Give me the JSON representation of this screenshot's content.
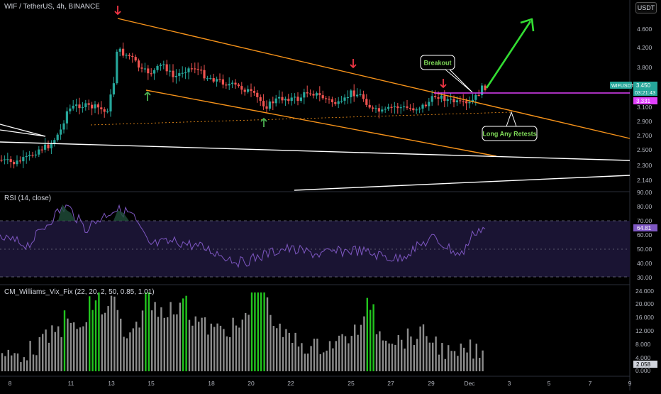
{
  "header": {
    "symbol": "WIF / TetherUS, 4h, BINANCE",
    "currency": "USDT"
  },
  "price_axis": {
    "ticks": [
      "4.600",
      "4.200",
      "3.800",
      "3.450",
      "3.100",
      "2.900",
      "2.700",
      "2.500",
      "2.300",
      "2.140",
      "90.00"
    ],
    "badges": [
      {
        "text": "WIFUSDT",
        "color": "#26a69a"
      },
      {
        "text": "3.450",
        "color": "#26a69a"
      },
      {
        "text": "03:21:43",
        "color": "#26a69a"
      },
      {
        "text": "3.331",
        "color": "#e040fb"
      }
    ]
  },
  "annotations": {
    "breakout": "Breakout",
    "retest": "Long Any Retests"
  },
  "rsi": {
    "label": "RSI (14, close)",
    "ticks": [
      "80.00",
      "70.00",
      "60.00",
      "50.00",
      "40.00",
      "30.00"
    ],
    "value": "64.81"
  },
  "vix": {
    "label": "CM_Williams_Vix_Fix (22, 20, 2, 50, 0.85, 1.01)",
    "ticks": [
      "24.000",
      "20.000",
      "16.000",
      "12.000",
      "8.000",
      "4.000",
      "0.000"
    ],
    "value": "2.058"
  },
  "time_axis": {
    "ticks": [
      "8",
      "11",
      "13",
      "15",
      "18",
      "20",
      "22",
      "25",
      "27",
      "29",
      "Dec",
      "3",
      "5",
      "7",
      "9"
    ]
  },
  "colors": {
    "up": "#26a69a",
    "down": "#ef5350",
    "channel": "#f7931a",
    "resistance": "#e040fb",
    "rsi_line": "#7e57c2",
    "vix_green": "#22c51e",
    "vix_grey": "#8c8c8c",
    "arrow_green": "#4caf50",
    "arrow_red": "#f23645"
  }
}
